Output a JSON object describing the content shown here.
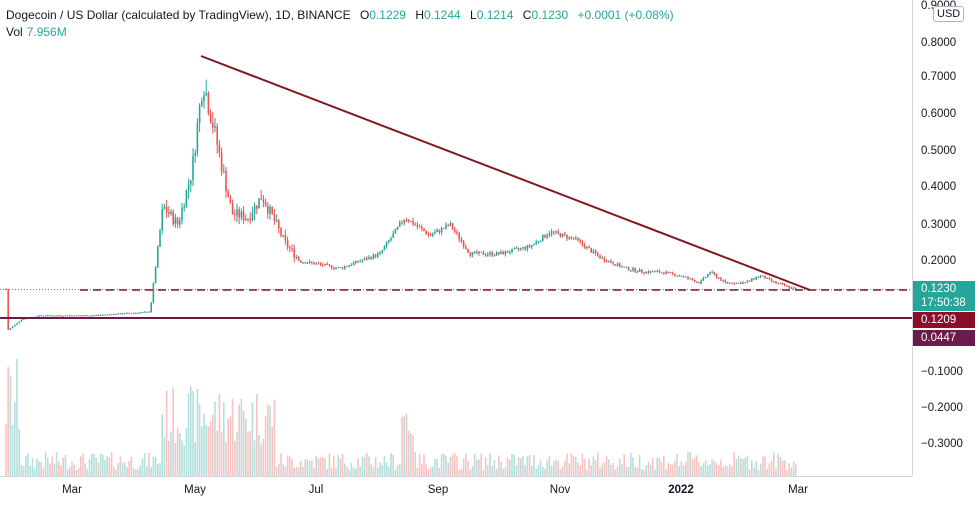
{
  "header": {
    "symbol": "Dogecoin / US Dollar (calculated by TradingView), 1D, BINANCE",
    "open_label": "O",
    "open": "0.1229",
    "high_label": "H",
    "high": "0.1244",
    "low_label": "L",
    "low": "0.1214",
    "close_label": "C",
    "close": "0.1230",
    "change": "+0.0001 (+0.08%)",
    "volume_label": "Vol",
    "volume": "7.956M"
  },
  "price_axis": {
    "currency": "USD",
    "ticks": [
      "0.9000",
      "0.8000",
      "0.7000",
      "0.6000",
      "0.5000",
      "0.4000",
      "0.3000",
      "0.2000",
      "−0.1000",
      "−0.2000",
      "−0.3000"
    ],
    "last_price_label": "0.1230",
    "countdown_label": "17:50:38",
    "support_label": "0.1209",
    "support_label2": "0.0447"
  },
  "time_axis": {
    "ticks": [
      "Mar",
      "May",
      "Jul",
      "Sep",
      "Nov",
      "2022",
      "Mar"
    ]
  },
  "colors": {
    "up": "#26a69a",
    "down": "#ef5350",
    "trendline": "#801922",
    "support": "#6a1b4a",
    "last_price": "#26a69a",
    "support_label_bg": "#880e2a"
  },
  "chart_data": {
    "type": "candlestick",
    "symbol": "DOGEUSD",
    "interval": "1D",
    "y_range": [
      -0.35,
      0.9
    ],
    "x_ticks": [
      "Mar",
      "May",
      "Jul",
      "Sep",
      "Nov",
      "2022",
      "Mar"
    ],
    "approx_close_path": [
      {
        "x": "Jan 2021",
        "close": 0.01
      },
      {
        "x": "late Jan 2021",
        "close": 0.04
      },
      {
        "x": "Feb 2021",
        "close": 0.05
      },
      {
        "x": "Mar 2021",
        "close": 0.055
      },
      {
        "x": "mid Apr 2021",
        "close": 0.32
      },
      {
        "x": "early May 2021",
        "close": 0.7
      },
      {
        "x": "late May 2021",
        "close": 0.33
      },
      {
        "x": "Jul 2021",
        "close": 0.2
      },
      {
        "x": "mid Aug 2021",
        "close": 0.31
      },
      {
        "x": "Sep 2021",
        "close": 0.25
      },
      {
        "x": "late Oct 2021",
        "close": 0.27
      },
      {
        "x": "Dec 2021",
        "close": 0.17
      },
      {
        "x": "Jan 2022",
        "close": 0.14
      },
      {
        "x": "Feb 2022",
        "close": 0.14
      },
      {
        "x": "late Feb 2022",
        "close": 0.123
      }
    ],
    "last_close": 0.123,
    "horizontal_support": 0.1209,
    "lower_line": 0.0447,
    "trendline": {
      "from": {
        "x": "early May 2021",
        "y": 0.76
      },
      "to": {
        "x": "early Mar 2022",
        "y": 0.123
      }
    }
  }
}
